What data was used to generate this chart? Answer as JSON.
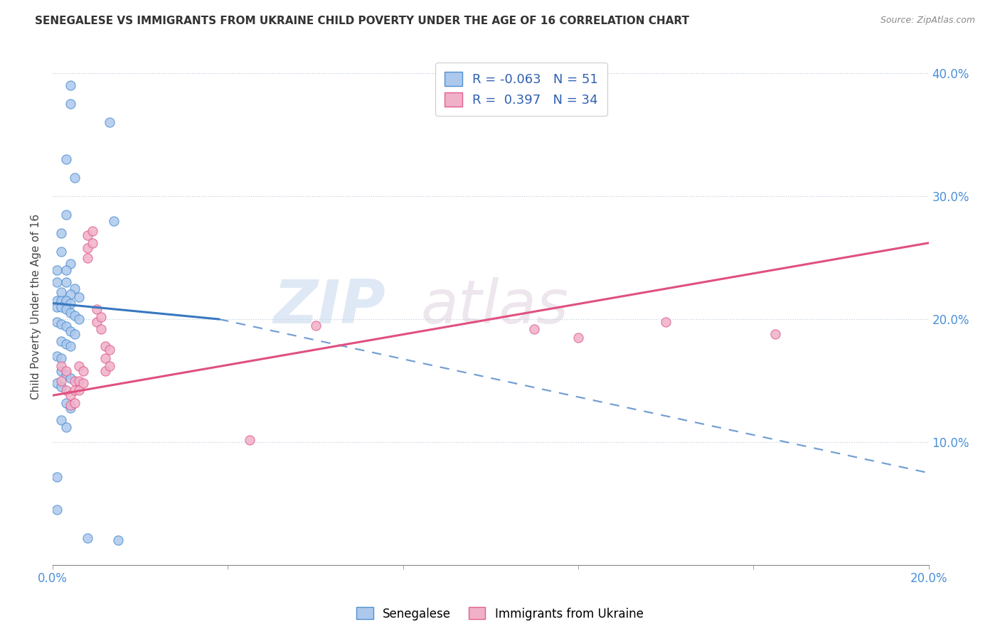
{
  "title": "SENEGALESE VS IMMIGRANTS FROM UKRAINE CHILD POVERTY UNDER THE AGE OF 16 CORRELATION CHART",
  "source": "Source: ZipAtlas.com",
  "ylabel": "Child Poverty Under the Age of 16",
  "xlim": [
    0.0,
    0.2
  ],
  "ylim": [
    0.0,
    0.42
  ],
  "xticks": [
    0.0,
    0.04,
    0.08,
    0.12,
    0.16,
    0.2
  ],
  "xtick_labels": [
    "0.0%",
    "",
    "",
    "",
    "",
    "20.0%"
  ],
  "yticks": [
    0.0,
    0.1,
    0.2,
    0.3,
    0.4
  ],
  "right_ytick_labels": [
    "",
    "10.0%",
    "20.0%",
    "30.0%",
    "40.0%"
  ],
  "blue_R": "-0.063",
  "blue_N": "51",
  "pink_R": "0.397",
  "pink_N": "34",
  "blue_fill": "#adc8ed",
  "pink_fill": "#f0b0c8",
  "blue_edge": "#5090d0",
  "pink_edge": "#e06090",
  "blue_line_color": "#3878c0",
  "pink_line_color": "#e05080",
  "blue_scatter": [
    [
      0.004,
      0.39
    ],
    [
      0.004,
      0.375
    ],
    [
      0.013,
      0.36
    ],
    [
      0.003,
      0.33
    ],
    [
      0.005,
      0.315
    ],
    [
      0.003,
      0.285
    ],
    [
      0.014,
      0.28
    ],
    [
      0.002,
      0.27
    ],
    [
      0.002,
      0.255
    ],
    [
      0.004,
      0.245
    ],
    [
      0.001,
      0.24
    ],
    [
      0.003,
      0.24
    ],
    [
      0.001,
      0.23
    ],
    [
      0.003,
      0.23
    ],
    [
      0.005,
      0.225
    ],
    [
      0.002,
      0.222
    ],
    [
      0.004,
      0.22
    ],
    [
      0.006,
      0.218
    ],
    [
      0.001,
      0.215
    ],
    [
      0.002,
      0.215
    ],
    [
      0.003,
      0.215
    ],
    [
      0.004,
      0.213
    ],
    [
      0.001,
      0.21
    ],
    [
      0.002,
      0.21
    ],
    [
      0.003,
      0.208
    ],
    [
      0.004,
      0.205
    ],
    [
      0.005,
      0.203
    ],
    [
      0.006,
      0.2
    ],
    [
      0.001,
      0.198
    ],
    [
      0.002,
      0.196
    ],
    [
      0.003,
      0.194
    ],
    [
      0.004,
      0.19
    ],
    [
      0.005,
      0.188
    ],
    [
      0.002,
      0.182
    ],
    [
      0.003,
      0.18
    ],
    [
      0.004,
      0.178
    ],
    [
      0.001,
      0.17
    ],
    [
      0.002,
      0.168
    ],
    [
      0.002,
      0.158
    ],
    [
      0.003,
      0.155
    ],
    [
      0.004,
      0.152
    ],
    [
      0.001,
      0.148
    ],
    [
      0.002,
      0.145
    ],
    [
      0.003,
      0.132
    ],
    [
      0.004,
      0.128
    ],
    [
      0.002,
      0.118
    ],
    [
      0.003,
      0.112
    ],
    [
      0.001,
      0.072
    ],
    [
      0.001,
      0.045
    ],
    [
      0.008,
      0.022
    ],
    [
      0.015,
      0.02
    ]
  ],
  "pink_scatter": [
    [
      0.002,
      0.162
    ],
    [
      0.002,
      0.15
    ],
    [
      0.003,
      0.158
    ],
    [
      0.003,
      0.142
    ],
    [
      0.004,
      0.138
    ],
    [
      0.004,
      0.13
    ],
    [
      0.005,
      0.15
    ],
    [
      0.005,
      0.142
    ],
    [
      0.005,
      0.132
    ],
    [
      0.006,
      0.162
    ],
    [
      0.006,
      0.15
    ],
    [
      0.006,
      0.142
    ],
    [
      0.007,
      0.158
    ],
    [
      0.007,
      0.148
    ],
    [
      0.008,
      0.268
    ],
    [
      0.008,
      0.258
    ],
    [
      0.008,
      0.25
    ],
    [
      0.009,
      0.272
    ],
    [
      0.009,
      0.262
    ],
    [
      0.01,
      0.208
    ],
    [
      0.01,
      0.198
    ],
    [
      0.011,
      0.202
    ],
    [
      0.011,
      0.192
    ],
    [
      0.012,
      0.178
    ],
    [
      0.012,
      0.168
    ],
    [
      0.012,
      0.158
    ],
    [
      0.013,
      0.175
    ],
    [
      0.013,
      0.162
    ],
    [
      0.045,
      0.102
    ],
    [
      0.06,
      0.195
    ],
    [
      0.11,
      0.192
    ],
    [
      0.12,
      0.185
    ],
    [
      0.14,
      0.198
    ],
    [
      0.165,
      0.188
    ]
  ],
  "blue_line_solid": [
    [
      0.0,
      0.213
    ],
    [
      0.038,
      0.2
    ]
  ],
  "blue_line_dash": [
    [
      0.038,
      0.2
    ],
    [
      0.2,
      0.075
    ]
  ],
  "pink_line": [
    [
      0.0,
      0.138
    ],
    [
      0.2,
      0.262
    ]
  ]
}
